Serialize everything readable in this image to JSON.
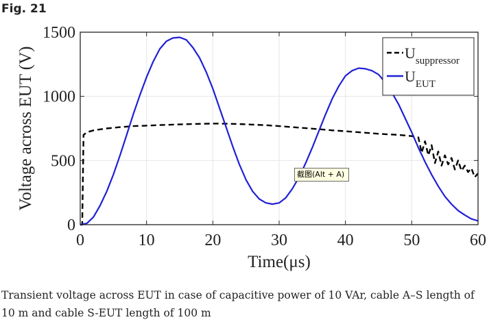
{
  "figure": {
    "label": "Fig. 21",
    "caption": "Transient voltage across EUT in case of capacitive power of 10 VAr, cable A–S length of 10 m and cable S-EUT length of 100 m"
  },
  "tooltip": {
    "text": "截图(Alt + A)"
  },
  "chart_data": {
    "type": "line",
    "xlabel": "Time(μs)",
    "ylabel": "Voltage across EUT (V)",
    "xlim": [
      0,
      60
    ],
    "ylim": [
      0,
      1500
    ],
    "xticks": [
      0,
      10,
      20,
      30,
      40,
      50,
      60
    ],
    "yticks": [
      0,
      500,
      1000,
      1500
    ],
    "grid": true,
    "legend_position": "top-right",
    "series": [
      {
        "name": "U_suppressor",
        "legend_main": "U",
        "legend_sub": "suppressor",
        "color": "#000000",
        "style": "dashed",
        "x": [
          0,
          0.3,
          0.5,
          1,
          2,
          4,
          6,
          8,
          10,
          12,
          14,
          16,
          18,
          20,
          22,
          24,
          26,
          28,
          30,
          32,
          34,
          36,
          38,
          40,
          42,
          44,
          46,
          48,
          50,
          51,
          51.5,
          52,
          52.5,
          53,
          53.5,
          54,
          54.5,
          55,
          55.5,
          56,
          56.5,
          57,
          57.5,
          58,
          58.5,
          59,
          59.5,
          60
        ],
        "y": [
          0,
          0,
          700,
          720,
          735,
          750,
          760,
          768,
          772,
          776,
          780,
          783,
          786,
          788,
          787,
          784,
          780,
          775,
          768,
          760,
          752,
          744,
          735,
          728,
          720,
          712,
          705,
          700,
          690,
          680,
          560,
          650,
          540,
          620,
          480,
          570,
          460,
          540,
          470,
          520,
          430,
          500,
          420,
          460,
          410,
          440,
          370,
          400
        ]
      },
      {
        "name": "U_EUT",
        "legend_main": "U",
        "legend_sub": "EUT",
        "color": "#1f1fd6",
        "style": "solid",
        "x": [
          0,
          1,
          2,
          3,
          4,
          5,
          6,
          7,
          8,
          9,
          10,
          11,
          12,
          13,
          14,
          15,
          16,
          17,
          18,
          19,
          20,
          21,
          22,
          23,
          24,
          25,
          26,
          27,
          28,
          29,
          30,
          31,
          32,
          33,
          34,
          35,
          36,
          37,
          38,
          39,
          40,
          41,
          42,
          43,
          44,
          45,
          46,
          47,
          48,
          49,
          50,
          51,
          52,
          53,
          54,
          55,
          56,
          57,
          58,
          59,
          60
        ],
        "y": [
          0,
          10,
          60,
          150,
          260,
          390,
          540,
          700,
          860,
          1010,
          1150,
          1270,
          1370,
          1430,
          1455,
          1460,
          1440,
          1380,
          1300,
          1190,
          1060,
          910,
          760,
          610,
          470,
          350,
          260,
          200,
          170,
          160,
          170,
          210,
          280,
          370,
          480,
          600,
          730,
          860,
          980,
          1080,
          1160,
          1200,
          1220,
          1215,
          1200,
          1170,
          1110,
          1030,
          940,
          830,
          720,
          600,
          490,
          390,
          300,
          220,
          160,
          110,
          75,
          45,
          30
        ]
      }
    ]
  }
}
